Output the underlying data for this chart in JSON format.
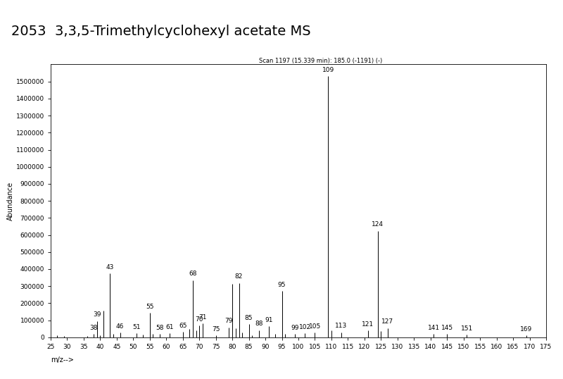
{
  "title": "2053  3,3,5-Trimethylcyclohexyl acetate MS",
  "scan_info": "Scan 1197 (15.339 min): 185.0 (-1191) (-)",
  "xlabel": "m/z-->",
  "ylabel": "Abundance",
  "xlim": [
    25,
    175
  ],
  "ylim": [
    0,
    1600000
  ],
  "xticks": [
    25,
    30,
    35,
    40,
    45,
    50,
    55,
    60,
    65,
    70,
    75,
    80,
    85,
    90,
    95,
    100,
    105,
    110,
    115,
    120,
    125,
    130,
    135,
    140,
    145,
    150,
    155,
    160,
    165,
    170,
    175
  ],
  "yticks": [
    0,
    100000,
    200000,
    300000,
    400000,
    500000,
    600000,
    700000,
    800000,
    900000,
    1000000,
    1100000,
    1200000,
    1300000,
    1400000,
    1500000
  ],
  "peaks": [
    {
      "mz": 27,
      "intensity": 12000
    },
    {
      "mz": 29,
      "intensity": 8000
    },
    {
      "mz": 36,
      "intensity": 6000
    },
    {
      "mz": 38,
      "intensity": 18000,
      "label": true
    },
    {
      "mz": 39,
      "intensity": 95000,
      "label": true
    },
    {
      "mz": 40,
      "intensity": 12000
    },
    {
      "mz": 41,
      "intensity": 155000
    },
    {
      "mz": 43,
      "intensity": 375000,
      "label": true
    },
    {
      "mz": 44,
      "intensity": 18000
    },
    {
      "mz": 46,
      "intensity": 28000,
      "label": true
    },
    {
      "mz": 51,
      "intensity": 22000,
      "label": true
    },
    {
      "mz": 53,
      "intensity": 14000
    },
    {
      "mz": 55,
      "intensity": 142000,
      "label": true
    },
    {
      "mz": 56,
      "intensity": 18000
    },
    {
      "mz": 58,
      "intensity": 20000,
      "label": true
    },
    {
      "mz": 61,
      "intensity": 22000,
      "label": true
    },
    {
      "mz": 65,
      "intensity": 32000,
      "label": true
    },
    {
      "mz": 67,
      "intensity": 50000
    },
    {
      "mz": 68,
      "intensity": 335000,
      "label": true
    },
    {
      "mz": 69,
      "intensity": 42000
    },
    {
      "mz": 71,
      "intensity": 82000,
      "label": true
    },
    {
      "mz": 70,
      "intensity": 68000,
      "label": true
    },
    {
      "mz": 75,
      "intensity": 12000,
      "label": true
    },
    {
      "mz": 79,
      "intensity": 58000,
      "label": true
    },
    {
      "mz": 80,
      "intensity": 315000
    },
    {
      "mz": 81,
      "intensity": 52000
    },
    {
      "mz": 82,
      "intensity": 318000,
      "label": true
    },
    {
      "mz": 83,
      "intensity": 28000
    },
    {
      "mz": 85,
      "intensity": 78000,
      "label": true
    },
    {
      "mz": 86,
      "intensity": 12000
    },
    {
      "mz": 88,
      "intensity": 42000,
      "label": true
    },
    {
      "mz": 91,
      "intensity": 65000,
      "label": true
    },
    {
      "mz": 93,
      "intensity": 18000
    },
    {
      "mz": 95,
      "intensity": 272000,
      "label": true
    },
    {
      "mz": 96,
      "intensity": 20000
    },
    {
      "mz": 99,
      "intensity": 18000,
      "label": true
    },
    {
      "mz": 102,
      "intensity": 24000,
      "label": true
    },
    {
      "mz": 105,
      "intensity": 28000,
      "label": true
    },
    {
      "mz": 109,
      "intensity": 1530000,
      "label": true
    },
    {
      "mz": 110,
      "intensity": 42000
    },
    {
      "mz": 113,
      "intensity": 30000,
      "label": true
    },
    {
      "mz": 121,
      "intensity": 40000,
      "label": true
    },
    {
      "mz": 124,
      "intensity": 625000,
      "label": true
    },
    {
      "mz": 125,
      "intensity": 38000
    },
    {
      "mz": 127,
      "intensity": 55000,
      "label": true
    },
    {
      "mz": 141,
      "intensity": 18000,
      "label": true
    },
    {
      "mz": 145,
      "intensity": 18000,
      "label": true
    },
    {
      "mz": 151,
      "intensity": 15000,
      "label": true
    },
    {
      "mz": 169,
      "intensity": 12000,
      "label": true
    }
  ],
  "background_color": "#ffffff",
  "line_color": "#000000",
  "title_fontsize": 14,
  "tick_fontsize": 6.5,
  "label_fontsize": 6.5,
  "axis_label_fontsize": 7
}
